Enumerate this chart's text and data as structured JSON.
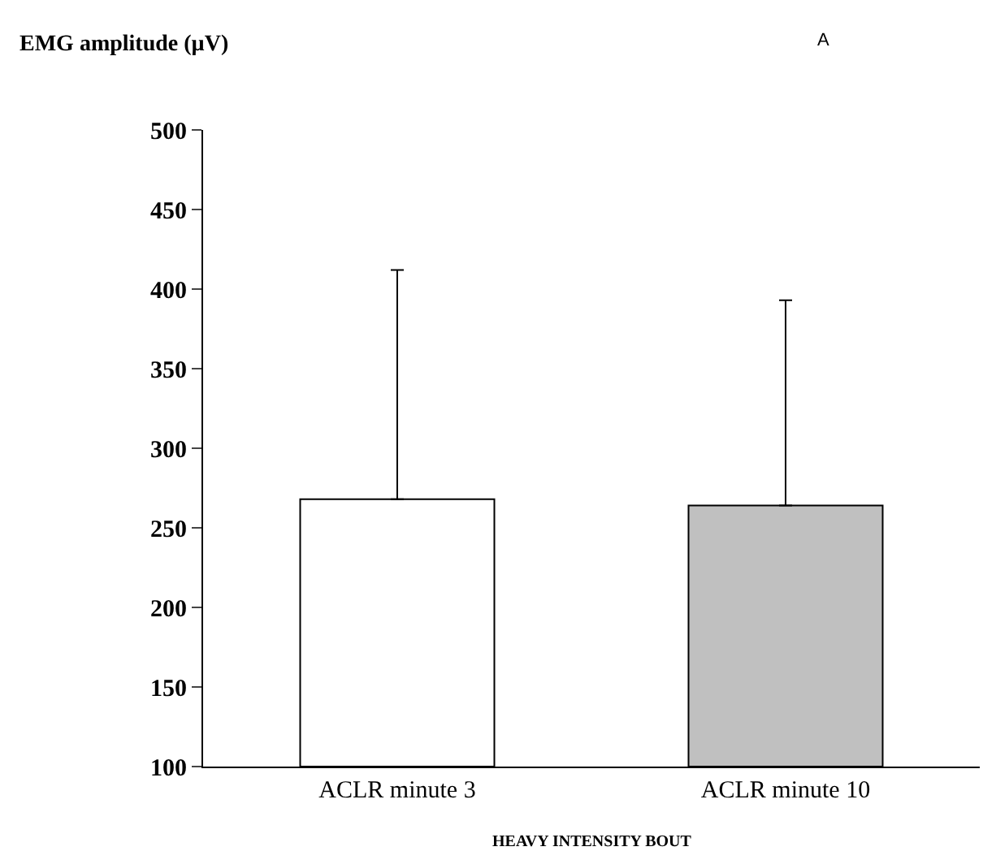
{
  "chart_data": {
    "type": "bar",
    "ylabel": "EMG amplitude (µV)",
    "xlabel": "HEAVY INTENSITY BOUT",
    "annotations": [
      "A"
    ],
    "categories": [
      "ACLR minute 3",
      "ACLR minute 10"
    ],
    "values": [
      268,
      264
    ],
    "colors": [
      "#ffffff",
      "#c0c0c0"
    ],
    "errors": [
      [
        268,
        412
      ],
      [
        264,
        393
      ]
    ],
    "ylim": [
      100,
      500
    ],
    "yticks": [
      100,
      150,
      200,
      250,
      300,
      350,
      400,
      450,
      500
    ]
  }
}
